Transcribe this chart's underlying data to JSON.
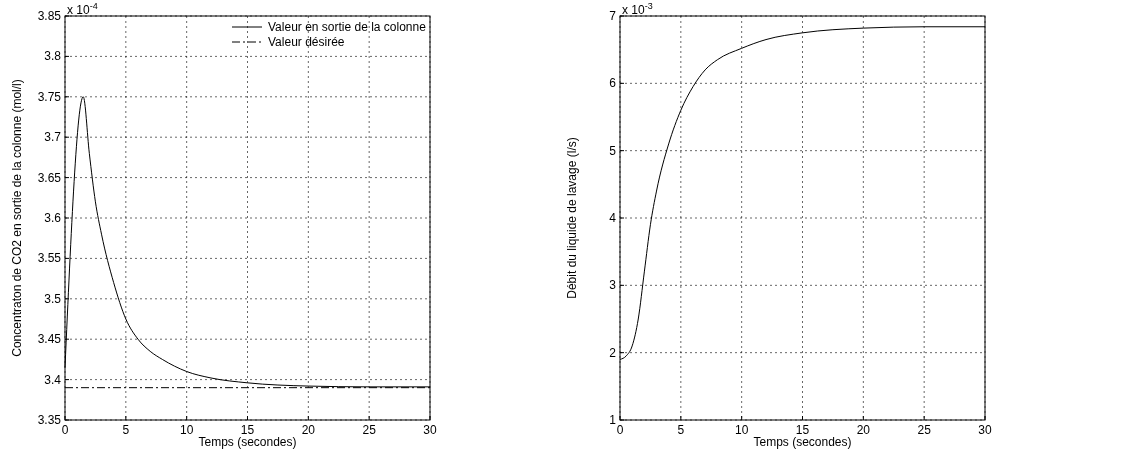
{
  "chart_data": [
    {
      "type": "line",
      "xlabel": "Temps (secondes)",
      "ylabel": "Concentraton de CO2 en sortie de la colonne (mol/l)",
      "annotations": [
        "x 10$^{-4}$"
      ],
      "xlim": [
        0,
        30
      ],
      "ylim": [
        3.35,
        3.85
      ],
      "xticks": [
        0,
        5,
        10,
        15,
        20,
        25,
        30
      ],
      "yticks": [
        3.35,
        3.4,
        3.45,
        3.5,
        3.55,
        3.6,
        3.65,
        3.7,
        3.75,
        3.8,
        3.85
      ],
      "grid": true,
      "legend": "top right",
      "series": [
        {
          "name": "Valeur en sortie de la colonne",
          "color": "#000000",
          "line_style": "solid",
          "x": [
            0,
            1.5,
            2,
            2.5,
            3,
            4,
            5,
            6,
            7,
            8,
            10,
            12,
            15,
            20,
            25,
            30
          ],
          "values": [
            3.415,
            3.75,
            3.68,
            3.62,
            3.58,
            3.52,
            3.475,
            3.45,
            3.435,
            3.425,
            3.41,
            3.402,
            3.396,
            3.392,
            3.391,
            3.391
          ]
        },
        {
          "name": "Valeur désirée",
          "color": "#000000",
          "line_style": "dashed",
          "x": [
            0,
            30
          ],
          "values": [
            3.39,
            3.39
          ]
        }
      ]
    },
    {
      "type": "line",
      "xlabel": "Temps (secondes)",
      "ylabel": "Débit du liquide de lavage (l/s)",
      "annotations": [
        "x 10$^{-3}$"
      ],
      "xlim": [
        0,
        30
      ],
      "ylim": [
        1,
        7
      ],
      "xticks": [
        0,
        5,
        10,
        15,
        20,
        25,
        30
      ],
      "yticks": [
        1,
        2,
        3,
        4,
        5,
        6,
        7
      ],
      "grid": true,
      "legend": false,
      "series": [
        {
          "color": "#000000",
          "line_style": "solid",
          "x": [
            0,
            0.5,
            1,
            1.5,
            2,
            2.5,
            3,
            4,
            5,
            6,
            7,
            8,
            10,
            12,
            15,
            20,
            25,
            30
          ],
          "values": [
            1.9,
            1.95,
            2.1,
            2.5,
            3.2,
            3.9,
            4.4,
            5.1,
            5.6,
            5.95,
            6.2,
            6.35,
            6.52,
            6.65,
            6.75,
            6.82,
            6.84,
            6.84
          ]
        }
      ]
    }
  ]
}
